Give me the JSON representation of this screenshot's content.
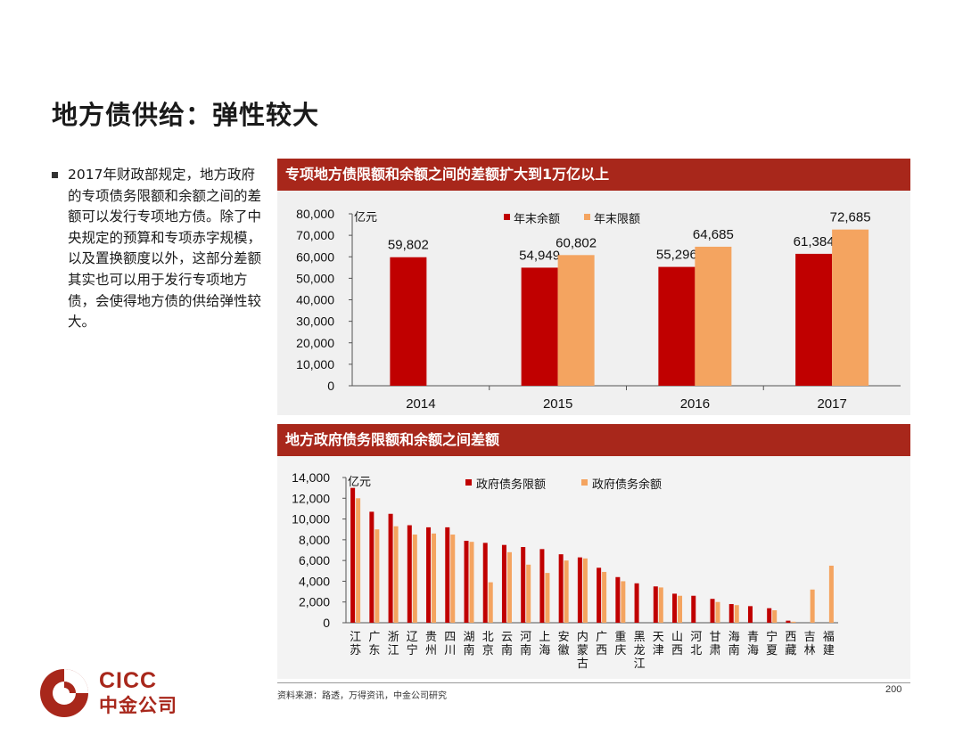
{
  "page": {
    "title": "地方债供给：弹性较大",
    "bullet": "2017年财政部规定，地方政府的专项债务限额和余额之间的差额可以发行专项地方债。除了中央规定的预算和专项赤字规模，以及置换额度以外，这部分差额其实也可以用于发行专项地方债，会使得地方债的供给弹性较大。",
    "source": "资料来源：路透，万得资讯，中金公司研究",
    "page_number": "200",
    "logo": {
      "latin": "CICC",
      "chinese": "中金公司"
    }
  },
  "colors": {
    "dark_red": "#c00000",
    "orange": "#f4a460",
    "header": "#a8271b"
  },
  "chart_data": [
    {
      "type": "bar",
      "title": "专项地方债限额和余额之间的差额扩大到1万亿以上",
      "ylabel": "亿元",
      "ylim": [
        0,
        80000
      ],
      "yticks": [
        "0",
        "10,000",
        "20,000",
        "30,000",
        "40,000",
        "50,000",
        "60,000",
        "70,000",
        "80,000"
      ],
      "categories": [
        "2014",
        "2015",
        "2016",
        "2017"
      ],
      "legend_position": "top-center",
      "series": [
        {
          "name": "年末余额",
          "color": "#c00000",
          "values": [
            59802,
            54949,
            55296,
            61384
          ],
          "labels": [
            "59,802",
            "54,949",
            "55,296",
            "61,384"
          ]
        },
        {
          "name": "年末限额",
          "color": "#f4a460",
          "values": [
            null,
            60802,
            64685,
            72685
          ],
          "labels": [
            "",
            "60,802",
            "64,685",
            "72,685"
          ]
        }
      ]
    },
    {
      "type": "bar",
      "title": "地方政府债务限额和余额之间差额",
      "ylabel": "亿元",
      "ylim": [
        0,
        14000
      ],
      "yticks": [
        "0",
        "2,000",
        "4,000",
        "6,000",
        "8,000",
        "10,000",
        "12,000",
        "14,000"
      ],
      "categories": [
        "江苏",
        "广东",
        "浙江",
        "辽宁",
        "贵州",
        "四川",
        "湖南",
        "北京",
        "云南",
        "河南",
        "上海",
        "安徽",
        "内蒙古",
        "广西",
        "重庆",
        "黑龙江",
        "天津",
        "山西",
        "河北",
        "甘肃",
        "海南",
        "青海",
        "宁夏",
        "西藏",
        "吉林",
        "福建"
      ],
      "legend_position": "top-center",
      "series": [
        {
          "name": "政府债务限额",
          "color": "#c00000",
          "values": [
            13000,
            10700,
            10500,
            9400,
            9200,
            9200,
            7900,
            7700,
            7500,
            7300,
            7100,
            6600,
            6300,
            5300,
            4400,
            3800,
            3500,
            2800,
            2600,
            2300,
            1800,
            1600,
            1400,
            200,
            0,
            0
          ]
        },
        {
          "name": "政府债务余额",
          "color": "#f4a460",
          "values": [
            12000,
            9000,
            9300,
            8500,
            8600,
            8500,
            7800,
            3900,
            6800,
            5600,
            4800,
            6000,
            6200,
            4900,
            4000,
            0,
            3400,
            2600,
            0,
            2000,
            1700,
            0,
            1200,
            100,
            3200,
            5500
          ]
        }
      ]
    }
  ]
}
